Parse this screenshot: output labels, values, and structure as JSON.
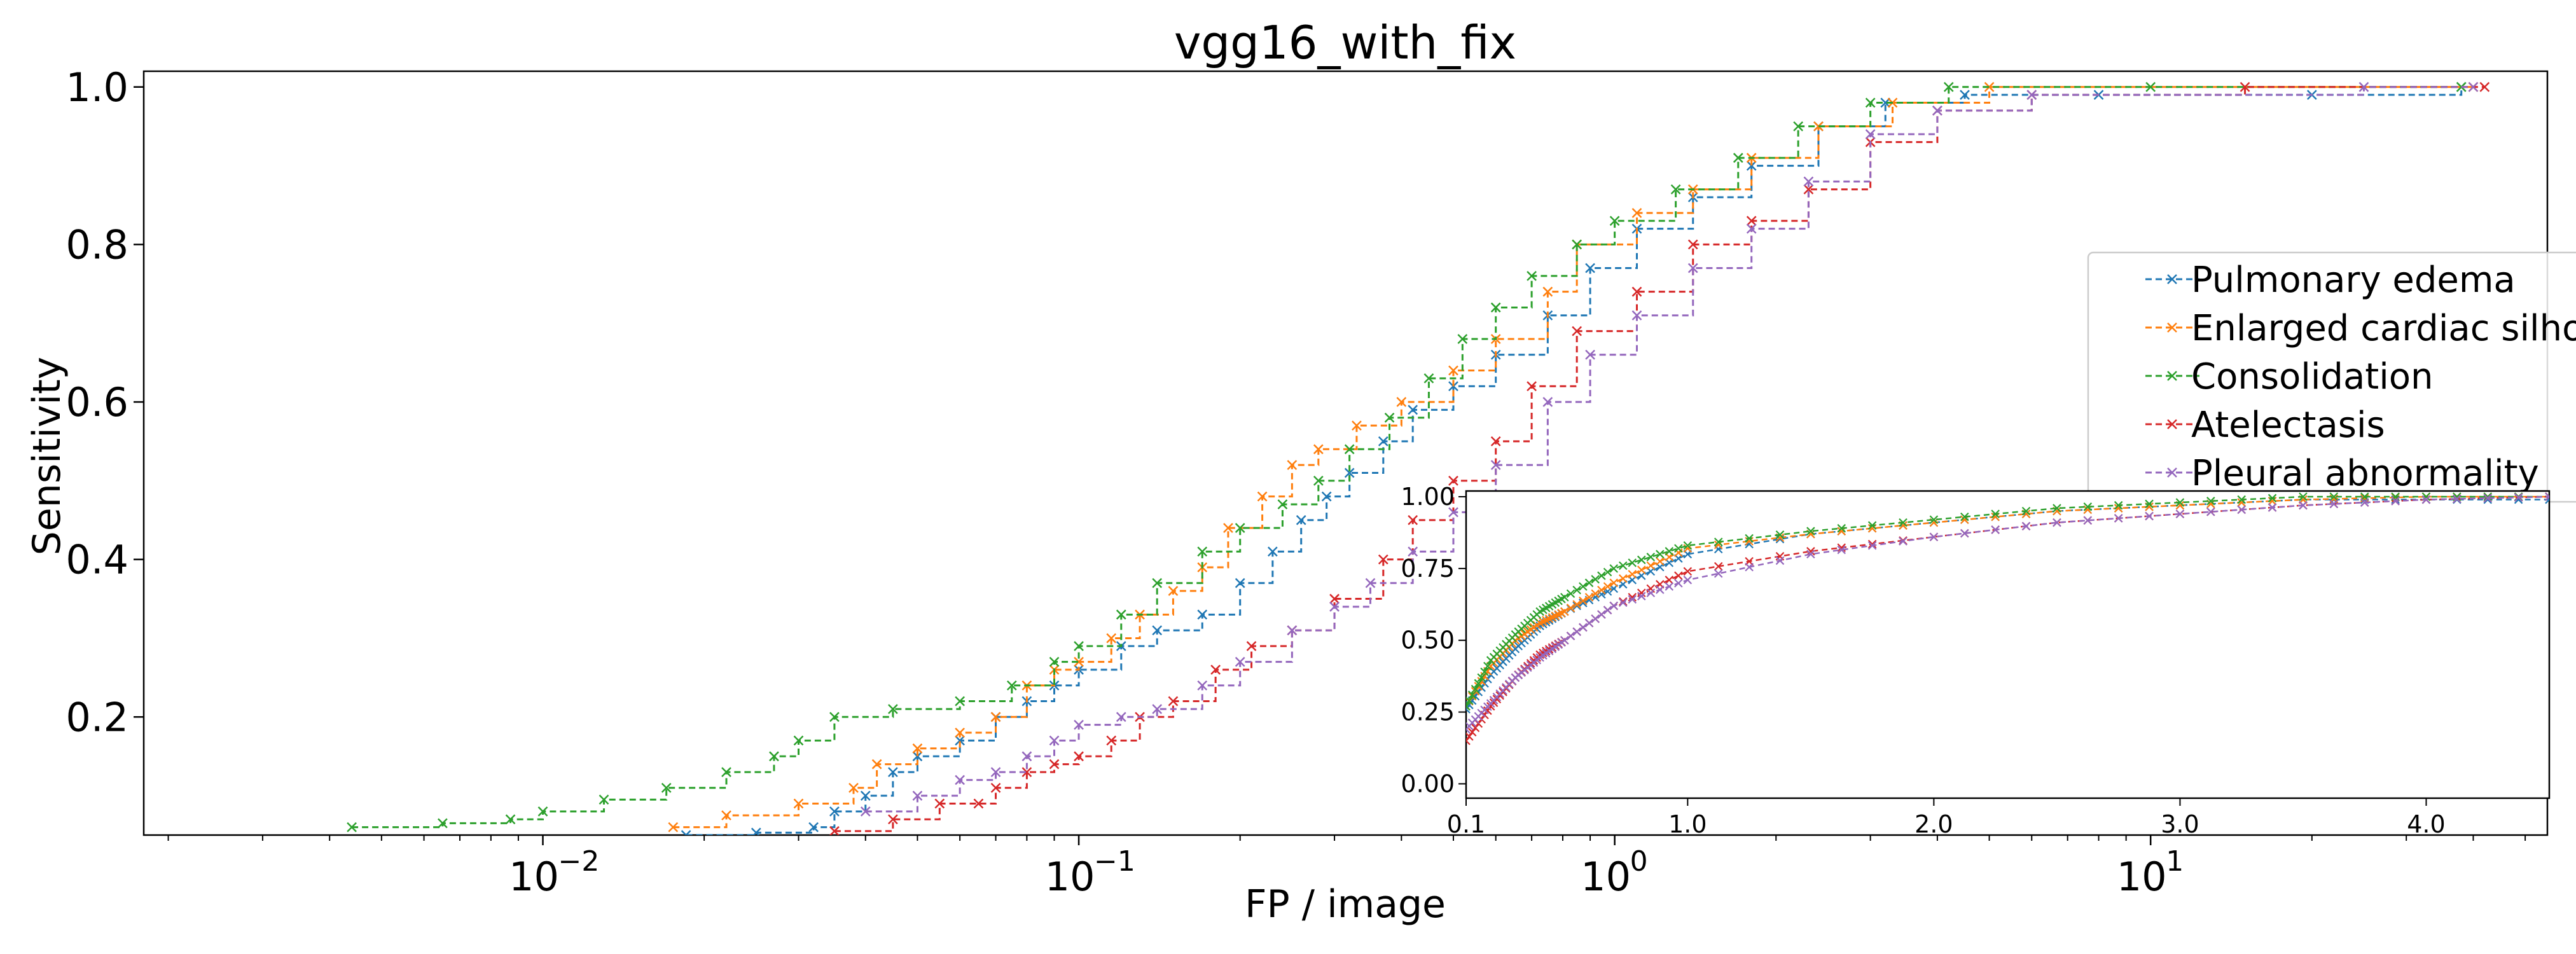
{
  "chart_data": [
    {
      "type": "line",
      "title": "vgg16_with_fix",
      "xlabel": "FP / image",
      "ylabel": "Sensitivity",
      "xscale": "log",
      "xlim": [
        0.0018,
        55
      ],
      "ylim": [
        0.05,
        1.02
      ],
      "x_tick_labels": [
        "10",
        "10",
        "10",
        "10"
      ],
      "x_tick_exponents": [
        "−2",
        "−1",
        "0",
        "1"
      ],
      "x_tick_values": [
        0.01,
        0.1,
        1,
        10
      ],
      "y_tick_labels": [
        "0.2",
        "0.4",
        "0.6",
        "0.8",
        "1.0"
      ],
      "y_tick_values": [
        0.2,
        0.4,
        0.6,
        0.8,
        1.0
      ],
      "grid": false,
      "legend_position": "right",
      "marker": "x",
      "line_style": "dashed",
      "series": [
        {
          "name": "Pulmonary edema",
          "color": "#1f77b4",
          "points": [
            [
              0.0185,
              0.05
            ],
            [
              0.025,
              0.053
            ],
            [
              0.032,
              0.06
            ],
            [
              0.035,
              0.08
            ],
            [
              0.04,
              0.1
            ],
            [
              0.045,
              0.13
            ],
            [
              0.05,
              0.15
            ],
            [
              0.06,
              0.17
            ],
            [
              0.07,
              0.2
            ],
            [
              0.08,
              0.22
            ],
            [
              0.09,
              0.24
            ],
            [
              0.1,
              0.26
            ],
            [
              0.12,
              0.29
            ],
            [
              0.14,
              0.31
            ],
            [
              0.17,
              0.33
            ],
            [
              0.2,
              0.37
            ],
            [
              0.23,
              0.41
            ],
            [
              0.26,
              0.45
            ],
            [
              0.29,
              0.48
            ],
            [
              0.32,
              0.51
            ],
            [
              0.37,
              0.55
            ],
            [
              0.42,
              0.59
            ],
            [
              0.5,
              0.62
            ],
            [
              0.6,
              0.66
            ],
            [
              0.75,
              0.71
            ],
            [
              0.9,
              0.77
            ],
            [
              1.1,
              0.82
            ],
            [
              1.4,
              0.86
            ],
            [
              1.8,
              0.9
            ],
            [
              2.4,
              0.95
            ],
            [
              3.2,
              0.98
            ],
            [
              4.5,
              0.99
            ],
            [
              8,
              0.99
            ],
            [
              20,
              0.99
            ],
            [
              38,
              1.0
            ]
          ]
        },
        {
          "name": "Enlarged cardiac silhouette",
          "color": "#ff7f0e",
          "points": [
            [
              0.0175,
              0.06
            ],
            [
              0.022,
              0.075
            ],
            [
              0.03,
              0.09
            ],
            [
              0.038,
              0.11
            ],
            [
              0.042,
              0.14
            ],
            [
              0.05,
              0.16
            ],
            [
              0.06,
              0.18
            ],
            [
              0.07,
              0.2
            ],
            [
              0.08,
              0.24
            ],
            [
              0.09,
              0.26
            ],
            [
              0.1,
              0.27
            ],
            [
              0.115,
              0.3
            ],
            [
              0.13,
              0.33
            ],
            [
              0.15,
              0.36
            ],
            [
              0.17,
              0.39
            ],
            [
              0.19,
              0.44
            ],
            [
              0.22,
              0.48
            ],
            [
              0.25,
              0.52
            ],
            [
              0.28,
              0.54
            ],
            [
              0.33,
              0.57
            ],
            [
              0.4,
              0.6
            ],
            [
              0.5,
              0.64
            ],
            [
              0.6,
              0.68
            ],
            [
              0.75,
              0.74
            ],
            [
              0.85,
              0.8
            ],
            [
              1.1,
              0.84
            ],
            [
              1.4,
              0.87
            ],
            [
              1.8,
              0.91
            ],
            [
              2.4,
              0.95
            ],
            [
              3.3,
              0.98
            ],
            [
              5,
              1.0
            ],
            [
              40,
              1.0
            ]
          ]
        },
        {
          "name": "Consolidation",
          "color": "#2ca02c",
          "points": [
            [
              0.0044,
              0.06
            ],
            [
              0.0065,
              0.065
            ],
            [
              0.0087,
              0.07
            ],
            [
              0.01,
              0.08
            ],
            [
              0.013,
              0.095
            ],
            [
              0.017,
              0.11
            ],
            [
              0.022,
              0.13
            ],
            [
              0.027,
              0.15
            ],
            [
              0.03,
              0.17
            ],
            [
              0.035,
              0.2
            ],
            [
              0.045,
              0.21
            ],
            [
              0.06,
              0.22
            ],
            [
              0.075,
              0.24
            ],
            [
              0.09,
              0.27
            ],
            [
              0.1,
              0.29
            ],
            [
              0.12,
              0.33
            ],
            [
              0.14,
              0.37
            ],
            [
              0.17,
              0.41
            ],
            [
              0.2,
              0.44
            ],
            [
              0.24,
              0.47
            ],
            [
              0.28,
              0.5
            ],
            [
              0.32,
              0.54
            ],
            [
              0.38,
              0.58
            ],
            [
              0.45,
              0.63
            ],
            [
              0.52,
              0.68
            ],
            [
              0.6,
              0.72
            ],
            [
              0.7,
              0.76
            ],
            [
              0.85,
              0.8
            ],
            [
              1.0,
              0.83
            ],
            [
              1.3,
              0.87
            ],
            [
              1.7,
              0.91
            ],
            [
              2.2,
              0.95
            ],
            [
              3,
              0.98
            ],
            [
              4.2,
              1.0
            ],
            [
              10,
              1.0
            ],
            [
              38,
              1.0
            ]
          ]
        },
        {
          "name": "Atelectasis",
          "color": "#d62728",
          "points": [
            [
              0.035,
              0.055
            ],
            [
              0.045,
              0.07
            ],
            [
              0.055,
              0.09
            ],
            [
              0.065,
              0.09
            ],
            [
              0.07,
              0.11
            ],
            [
              0.08,
              0.13
            ],
            [
              0.09,
              0.14
            ],
            [
              0.1,
              0.15
            ],
            [
              0.115,
              0.17
            ],
            [
              0.13,
              0.2
            ],
            [
              0.15,
              0.22
            ],
            [
              0.18,
              0.26
            ],
            [
              0.21,
              0.29
            ],
            [
              0.25,
              0.31
            ],
            [
              0.3,
              0.35
            ],
            [
              0.37,
              0.4
            ],
            [
              0.42,
              0.45
            ],
            [
              0.5,
              0.5
            ],
            [
              0.6,
              0.55
            ],
            [
              0.7,
              0.62
            ],
            [
              0.85,
              0.69
            ],
            [
              1.1,
              0.74
            ],
            [
              1.4,
              0.8
            ],
            [
              1.8,
              0.83
            ],
            [
              2.3,
              0.87
            ],
            [
              3,
              0.93
            ],
            [
              4,
              0.97
            ],
            [
              6,
              0.99
            ],
            [
              15,
              1.0
            ],
            [
              42,
              1.0
            ]
          ]
        },
        {
          "name": "Pleural abnormality",
          "color": "#9467bd",
          "points": [
            [
              0.04,
              0.08
            ],
            [
              0.05,
              0.1
            ],
            [
              0.06,
              0.12
            ],
            [
              0.07,
              0.13
            ],
            [
              0.08,
              0.15
            ],
            [
              0.09,
              0.17
            ],
            [
              0.1,
              0.19
            ],
            [
              0.12,
              0.2
            ],
            [
              0.14,
              0.21
            ],
            [
              0.17,
              0.24
            ],
            [
              0.2,
              0.27
            ],
            [
              0.25,
              0.31
            ],
            [
              0.3,
              0.34
            ],
            [
              0.35,
              0.37
            ],
            [
              0.42,
              0.41
            ],
            [
              0.5,
              0.46
            ],
            [
              0.6,
              0.52
            ],
            [
              0.75,
              0.6
            ],
            [
              0.9,
              0.66
            ],
            [
              1.1,
              0.71
            ],
            [
              1.4,
              0.77
            ],
            [
              1.8,
              0.82
            ],
            [
              2.3,
              0.88
            ],
            [
              3,
              0.94
            ],
            [
              4,
              0.97
            ],
            [
              6,
              0.99
            ],
            [
              25,
              1.0
            ],
            [
              40,
              1.0
            ]
          ]
        }
      ]
    },
    {
      "type": "line",
      "inset": true,
      "xlim": [
        0.1,
        4.5
      ],
      "ylim": [
        -0.05,
        1.02
      ],
      "x_tick_labels": [
        "0.1",
        "1.0",
        "2.0",
        "3.0",
        "4.0"
      ],
      "x_tick_values": [
        0.1,
        1.0,
        2.0,
        3.0,
        4.0
      ],
      "y_tick_labels": [
        "0.00",
        "0.25",
        "0.50",
        "0.75",
        "1.00"
      ],
      "y_tick_values": [
        0.0,
        0.25,
        0.5,
        0.75,
        1.0
      ],
      "marker": "x",
      "line_style": "dashed",
      "series": [
        {
          "color": "#1f77b4",
          "points": [
            [
              0.1,
              0.26
            ],
            [
              0.2,
              0.38
            ],
            [
              0.3,
              0.47
            ],
            [
              0.4,
              0.55
            ],
            [
              0.5,
              0.6
            ],
            [
              0.7,
              0.68
            ],
            [
              1.0,
              0.8
            ],
            [
              1.5,
              0.87
            ],
            [
              2.0,
              0.91
            ],
            [
              2.5,
              0.95
            ],
            [
              3.0,
              0.97
            ],
            [
              3.5,
              0.99
            ],
            [
              4.0,
              0.99
            ],
            [
              4.5,
              0.99
            ]
          ]
        },
        {
          "color": "#ff7f0e",
          "points": [
            [
              0.1,
              0.27
            ],
            [
              0.2,
              0.41
            ],
            [
              0.3,
              0.5
            ],
            [
              0.4,
              0.56
            ],
            [
              0.5,
              0.6
            ],
            [
              0.7,
              0.7
            ],
            [
              1.0,
              0.82
            ],
            [
              1.5,
              0.87
            ],
            [
              2.0,
              0.91
            ],
            [
              2.5,
              0.95
            ],
            [
              3.0,
              0.97
            ],
            [
              3.5,
              0.99
            ],
            [
              4.0,
              1.0
            ],
            [
              4.5,
              1.0
            ]
          ]
        },
        {
          "color": "#2ca02c",
          "points": [
            [
              0.1,
              0.27
            ],
            [
              0.2,
              0.43
            ],
            [
              0.3,
              0.52
            ],
            [
              0.4,
              0.6
            ],
            [
              0.5,
              0.65
            ],
            [
              0.7,
              0.75
            ],
            [
              1.0,
              0.83
            ],
            [
              1.5,
              0.88
            ],
            [
              2.0,
              0.92
            ],
            [
              2.5,
              0.96
            ],
            [
              3.0,
              0.98
            ],
            [
              3.5,
              1.0
            ],
            [
              4.0,
              1.0
            ],
            [
              4.5,
              1.0
            ]
          ]
        },
        {
          "color": "#d62728",
          "points": [
            [
              0.1,
              0.15
            ],
            [
              0.2,
              0.27
            ],
            [
              0.3,
              0.37
            ],
            [
              0.4,
              0.45
            ],
            [
              0.5,
              0.5
            ],
            [
              0.7,
              0.62
            ],
            [
              1.0,
              0.74
            ],
            [
              1.5,
              0.81
            ],
            [
              2.0,
              0.86
            ],
            [
              2.5,
              0.91
            ],
            [
              3.0,
              0.94
            ],
            [
              3.5,
              0.97
            ],
            [
              4.0,
              0.99
            ],
            [
              4.5,
              1.0
            ]
          ]
        },
        {
          "color": "#9467bd",
          "points": [
            [
              0.1,
              0.19
            ],
            [
              0.2,
              0.28
            ],
            [
              0.3,
              0.37
            ],
            [
              0.4,
              0.44
            ],
            [
              0.5,
              0.5
            ],
            [
              0.7,
              0.62
            ],
            [
              1.0,
              0.71
            ],
            [
              1.5,
              0.8
            ],
            [
              2.0,
              0.86
            ],
            [
              2.5,
              0.91
            ],
            [
              3.0,
              0.94
            ],
            [
              3.5,
              0.97
            ],
            [
              4.0,
              0.99
            ],
            [
              4.5,
              1.0
            ]
          ]
        }
      ]
    }
  ]
}
